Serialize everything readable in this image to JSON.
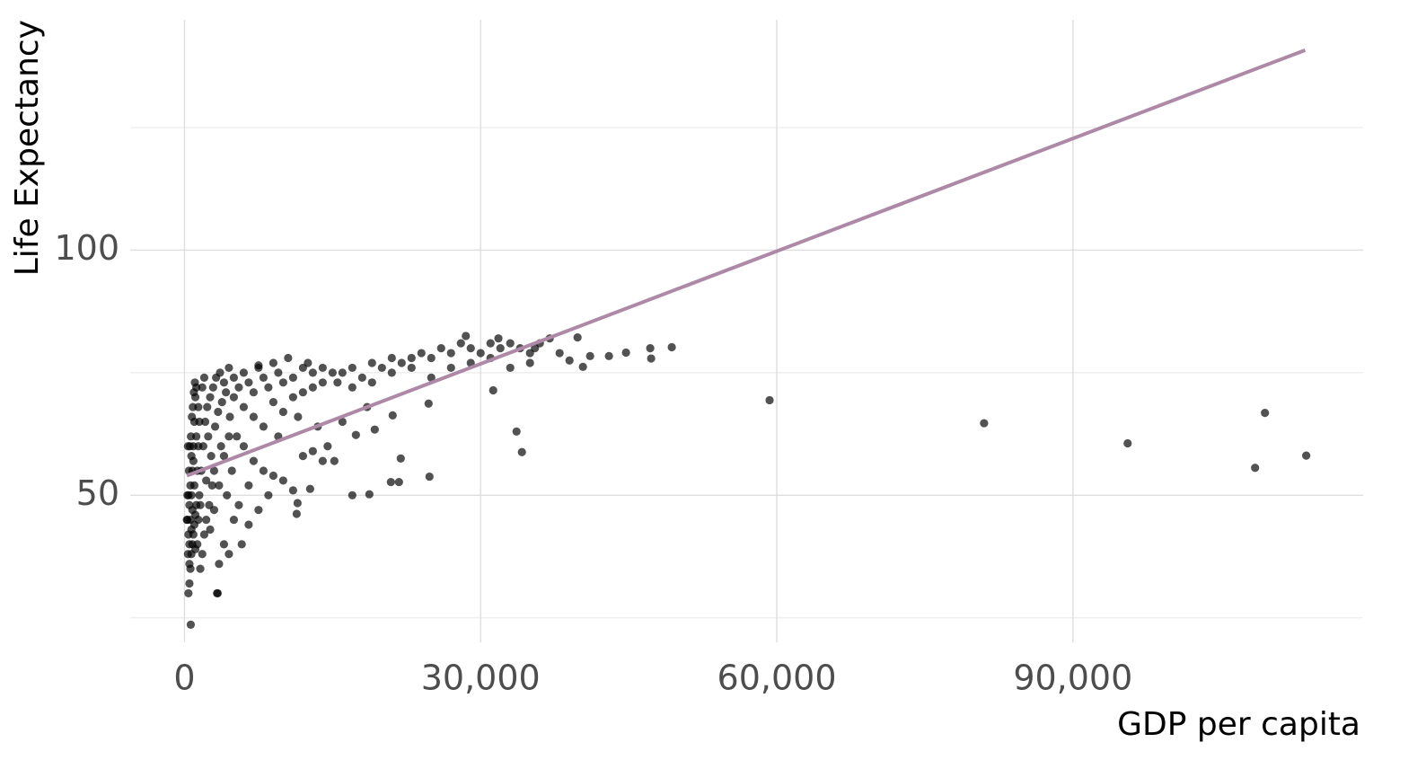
{
  "chart_data": {
    "type": "scatter",
    "x_label": "GDP per capita",
    "y_label": "Life Expectancy",
    "xlim": [
      -5500,
      119400
    ],
    "ylim": [
      20,
      147
    ],
    "xticks": [
      0,
      {
        "value": 30000,
        "label": "30,000"
      },
      {
        "value": 60000,
        "label": "60,000"
      },
      {
        "value": 90000,
        "label": "90,000"
      }
    ],
    "yticks": [
      50,
      100
    ],
    "yticks_minor": [
      25,
      75,
      125
    ],
    "grid": true,
    "color": "#000000",
    "trend": {
      "color": "#ad89a7",
      "x": [
        241,
        113523
      ],
      "y": [
        54.0,
        140.8
      ]
    },
    "x": [
      400,
      500,
      600,
      700,
      800,
      900,
      1000,
      1100,
      1200,
      500,
      600,
      700,
      800,
      900,
      1000,
      1100,
      1200,
      400,
      500,
      600,
      700,
      300,
      350,
      450,
      550,
      650,
      750,
      850,
      950,
      1050,
      1300,
      1400,
      1500,
      1300,
      1400,
      1500,
      400,
      500,
      800,
      1000,
      1200,
      1400,
      700,
      900,
      1100,
      1600,
      1800,
      2000,
      2200,
      2500,
      2800,
      3000,
      3500,
      4000,
      1700,
      1900,
      2100,
      2300,
      2600,
      2900,
      3200,
      3600,
      4000,
      4500,
      5000,
      1800,
      2000,
      2400,
      2700,
      3100,
      3400,
      3800,
      4200,
      4600,
      5000,
      3000,
      3500,
      4000,
      4500,
      5000,
      4500,
      3300,
      2200,
      1600,
      2600,
      3700,
      4800,
      4300,
      5500,
      6000,
      6500,
      7000,
      7500,
      8000,
      8500,
      9000,
      9500,
      10000,
      11000,
      12000,
      13000,
      14000,
      15000,
      6000,
      7000,
      8000,
      9000,
      10000,
      11000,
      12000,
      13000,
      14000,
      6000,
      7000,
      8000,
      9000,
      10000,
      11000,
      12000,
      13000,
      14000,
      5500,
      6500,
      7500,
      8500,
      5800,
      6500,
      7500,
      10500,
      12500,
      9500,
      11500,
      13500,
      5300,
      14500,
      11454,
      11364,
      12727,
      15182,
      15500,
      16000,
      17000,
      18000,
      19000,
      20000,
      21000,
      22000,
      23000,
      24000,
      25000,
      26000,
      27000,
      28000,
      29000,
      30000,
      31000,
      32000,
      33000,
      34000,
      35000,
      36000,
      37000,
      17000,
      19000,
      21000,
      23000,
      25000,
      27000,
      29000,
      31000,
      33000,
      35000,
      28500,
      31800,
      17364,
      19273,
      21090,
      17000,
      18727,
      20909,
      21727,
      21909,
      24727,
      24818,
      31273,
      33636,
      34182,
      18500,
      16000,
      35500,
      38000,
      39818,
      40363,
      41090,
      43000,
      44727,
      47182,
      47273,
      49364,
      39000,
      59273,
      81000,
      95545,
      108455,
      109455,
      113636,
      636,
      3364,
      241,
      300,
      350
    ],
    "y": [
      30,
      32,
      35,
      38,
      40,
      42,
      44,
      46,
      48,
      40,
      45,
      50,
      55,
      60,
      65,
      70,
      72,
      42,
      48,
      52,
      58,
      45,
      38,
      55,
      60,
      62,
      66,
      68,
      71,
      73,
      55,
      60,
      65,
      40,
      45,
      50,
      50,
      36,
      47,
      52,
      62,
      68,
      43,
      57,
      39,
      35,
      38,
      42,
      45,
      48,
      52,
      55,
      36,
      40,
      55,
      60,
      65,
      68,
      70,
      72,
      74,
      75,
      73,
      76,
      74,
      72,
      74,
      62,
      58,
      64,
      67,
      69,
      71,
      66,
      70,
      47,
      52,
      58,
      62,
      45,
      38,
      30,
      53,
      48,
      43,
      60,
      55,
      50,
      72,
      75,
      73,
      71,
      76,
      74,
      72,
      77,
      75,
      73,
      74,
      76,
      75,
      76,
      75,
      68,
      66,
      64,
      69,
      67,
      70,
      71,
      72,
      73,
      60,
      57,
      55,
      54,
      53,
      51,
      58,
      59,
      57,
      48,
      52,
      47,
      50,
      40,
      44,
      76.5,
      78,
      77,
      62,
      66,
      64,
      62,
      60,
      48.4,
      46.2,
      51.3,
      57,
      73,
      75,
      76,
      74,
      77,
      76,
      78,
      77,
      78,
      79,
      78,
      80,
      79,
      81,
      80,
      79,
      81,
      80,
      81,
      80,
      79,
      81,
      82,
      72,
      73,
      75,
      76,
      74,
      76,
      77,
      78,
      76,
      77,
      82.5,
      82,
      62.3,
      63.4,
      66.3,
      50,
      50.2,
      52.7,
      52.7,
      57.5,
      68.7,
      53.8,
      71.4,
      63,
      58.8,
      68,
      65,
      80,
      79,
      82.2,
      76.2,
      78.4,
      78.4,
      79.1,
      80,
      77.9,
      80.2,
      77.5,
      69.4,
      64.7,
      60.6,
      55.6,
      66.8,
      58.1,
      23.6,
      30,
      45,
      50,
      60
    ]
  }
}
